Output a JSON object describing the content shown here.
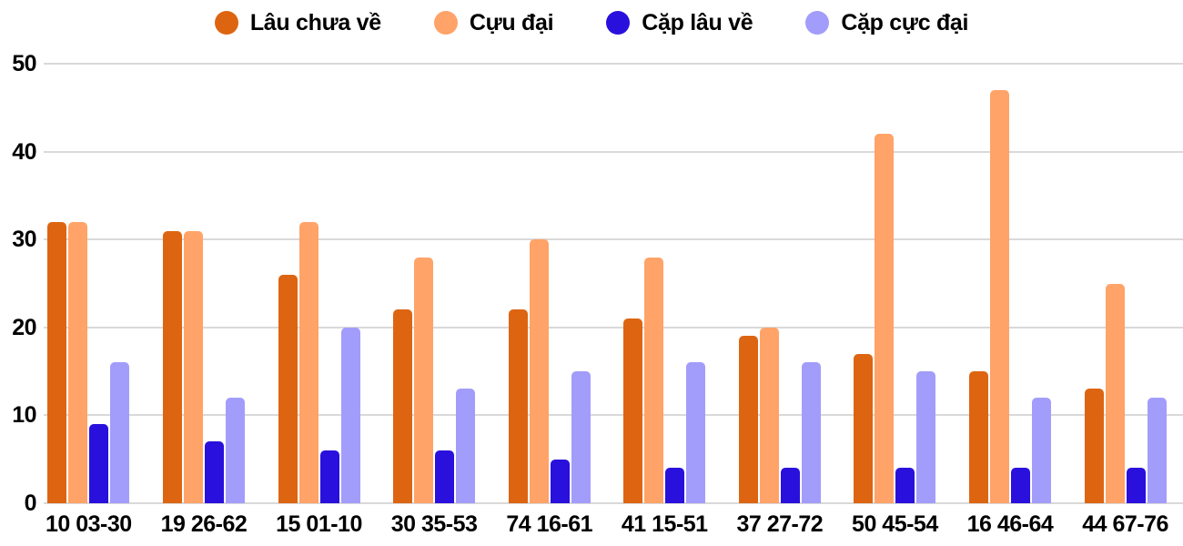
{
  "chart_data": {
    "type": "bar",
    "title": "",
    "xlabel": "",
    "ylabel": "",
    "categories": [
      "10 03-30",
      "19 26-62",
      "15 01-10",
      "30 35-53",
      "74 16-61",
      "41 15-51",
      "37 27-72",
      "50 45-54",
      "16 46-64",
      "44 67-76"
    ],
    "series": [
      {
        "name": "Lâu chưa về",
        "color": "#dd6511",
        "values": [
          32,
          31,
          26,
          22,
          22,
          21,
          19,
          17,
          15,
          13
        ]
      },
      {
        "name": "Cựu đại",
        "color": "#ffa368",
        "values": [
          32,
          31,
          32,
          28,
          30,
          28,
          20,
          42,
          47,
          25
        ]
      },
      {
        "name": "Cặp lâu về",
        "color": "#2a10dc",
        "values": [
          9,
          7,
          6,
          6,
          5,
          4,
          4,
          4,
          4,
          4
        ]
      },
      {
        "name": "Cặp cực đại",
        "color": "#a29dfa",
        "values": [
          16,
          12,
          20,
          13,
          15,
          16,
          16,
          15,
          12,
          12
        ]
      }
    ],
    "ylim": [
      0,
      50
    ],
    "yticks": [
      0,
      10,
      20,
      30,
      40,
      50
    ],
    "grid": true,
    "legend_position": "top",
    "colors": {
      "grid": "#d9d9d9",
      "text": "#000000",
      "background": "#ffffff"
    }
  }
}
